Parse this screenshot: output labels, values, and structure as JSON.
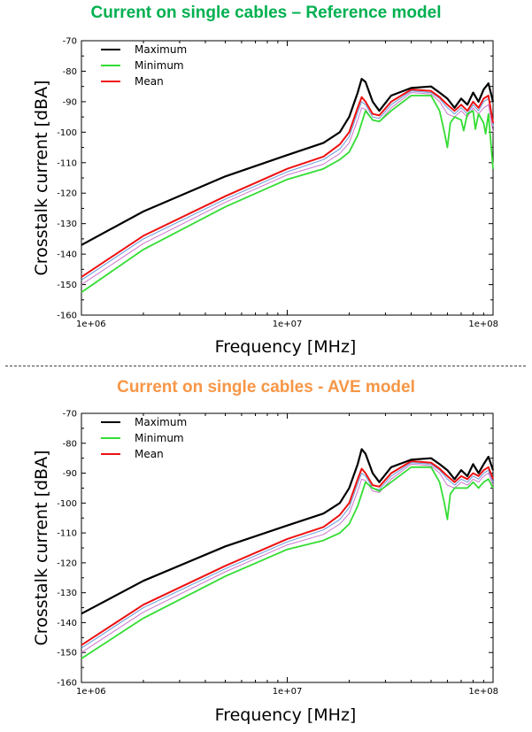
{
  "chart_data": [
    {
      "type": "line",
      "title": "Current on single cables – Reference model",
      "title_color": "#00b050",
      "xlabel": "Frequency [MHz]",
      "ylabel": "Crosstalk current [dBA]",
      "x_scale": "log",
      "xlim": [
        1000000,
        100000000
      ],
      "ylim": [
        -160,
        -70
      ],
      "x_ticks": [
        "1e+06",
        "1e+07",
        "1e+08"
      ],
      "y_ticks": [
        "-70",
        "-80",
        "-90",
        "-100",
        "-110",
        "-120",
        "-130",
        "-140",
        "-150",
        "-160"
      ],
      "legend_position": "top-left",
      "series": [
        {
          "name": "Maximum",
          "color": "#000000",
          "width": 2.2,
          "x": [
            1000000,
            2000000,
            5000000,
            10000000,
            15000000,
            18000000,
            20000000,
            22000000,
            23000000,
            24000000,
            26000000,
            28000000,
            32000000,
            40000000,
            50000000,
            55000000,
            60000000,
            65000000,
            70000000,
            75000000,
            80000000,
            85000000,
            90000000,
            95000000,
            100000000
          ],
          "y": [
            -137,
            -126,
            -114.5,
            -107.5,
            -103.5,
            -100,
            -95,
            -87,
            -82.5,
            -83.5,
            -90,
            -93,
            -88,
            -85.5,
            -85,
            -87,
            -89,
            -92,
            -89,
            -91,
            -87,
            -90,
            -86,
            -84,
            -90
          ]
        },
        {
          "name": "Minimum",
          "color": "#33dd33",
          "width": 1.8,
          "x": [
            1000000,
            2000000,
            5000000,
            10000000,
            15000000,
            18000000,
            20000000,
            22000000,
            24000000,
            26000000,
            28000000,
            32000000,
            40000000,
            50000000,
            55000000,
            58000000,
            60000000,
            62000000,
            65000000,
            70000000,
            72000000,
            75000000,
            80000000,
            82000000,
            85000000,
            90000000,
            92000000,
            95000000,
            100000000
          ],
          "y": [
            -152.5,
            -138.5,
            -124.5,
            -115.5,
            -112,
            -109,
            -106.5,
            -101,
            -93,
            -96,
            -96.5,
            -93,
            -88,
            -88,
            -93,
            -100,
            -105,
            -97,
            -95,
            -96,
            -99.5,
            -94,
            -93,
            -99,
            -94,
            -97,
            -100.5,
            -94,
            -112
          ]
        },
        {
          "name": "Mean",
          "color": "#ee1111",
          "width": 2.0,
          "x": [
            1000000,
            2000000,
            5000000,
            10000000,
            15000000,
            18000000,
            20000000,
            22000000,
            23000000,
            24000000,
            26000000,
            28000000,
            32000000,
            40000000,
            50000000,
            55000000,
            60000000,
            65000000,
            70000000,
            75000000,
            80000000,
            85000000,
            90000000,
            95000000,
            100000000
          ],
          "y": [
            -147.5,
            -134,
            -121,
            -112,
            -108,
            -104,
            -100,
            -92,
            -88.5,
            -90,
            -94,
            -94.5,
            -90,
            -86,
            -86.5,
            -88.5,
            -91,
            -93,
            -91,
            -93,
            -90,
            -92,
            -89,
            -88,
            -97
          ]
        },
        {
          "name": "",
          "color": "#6699dd",
          "width": 1.0,
          "x": [
            1000000,
            2000000,
            5000000,
            10000000,
            15000000,
            18000000,
            20000000,
            22000000,
            23000000,
            24000000,
            26000000,
            28000000,
            32000000,
            40000000,
            50000000,
            55000000,
            60000000,
            65000000,
            70000000,
            75000000,
            80000000,
            85000000,
            90000000,
            95000000,
            100000000
          ],
          "y": [
            -148.5,
            -135,
            -122,
            -113,
            -109,
            -105.5,
            -101.5,
            -93.5,
            -90,
            -91,
            -95,
            -95.5,
            -91,
            -86.5,
            -87,
            -89,
            -92,
            -94,
            -92,
            -94,
            -91,
            -93,
            -90,
            -89,
            -98
          ]
        },
        {
          "name": "",
          "color": "#cc77cc",
          "width": 1.0,
          "x": [
            1000000,
            2000000,
            5000000,
            10000000,
            15000000,
            18000000,
            20000000,
            22000000,
            23000000,
            24000000,
            26000000,
            28000000,
            32000000,
            40000000,
            50000000,
            55000000,
            60000000,
            65000000,
            70000000,
            75000000,
            80000000,
            85000000,
            90000000,
            95000000,
            100000000
          ],
          "y": [
            -150,
            -136.5,
            -123,
            -114,
            -110.5,
            -107,
            -103.5,
            -96,
            -92,
            -92.5,
            -96,
            -96.5,
            -92,
            -87,
            -87.5,
            -90,
            -94,
            -95,
            -93,
            -95,
            -92,
            -94,
            -92,
            -91,
            -100
          ]
        }
      ]
    },
    {
      "type": "line",
      "title": "Current on single cables - AVE model",
      "title_color": "#f79646",
      "xlabel": "Frequency [MHz]",
      "ylabel": "Crosstalk current [dBA]",
      "x_scale": "log",
      "xlim": [
        1000000,
        100000000
      ],
      "ylim": [
        -160,
        -70
      ],
      "x_ticks": [
        "1e+06",
        "1e+07",
        "1e+08"
      ],
      "y_ticks": [
        "-70",
        "-80",
        "-90",
        "-100",
        "-110",
        "-120",
        "-130",
        "-140",
        "-150",
        "-160"
      ],
      "legend_position": "top-left",
      "series": [
        {
          "name": "Maximum",
          "color": "#000000",
          "width": 2.2,
          "x": [
            1000000,
            2000000,
            5000000,
            10000000,
            15000000,
            18000000,
            20000000,
            22000000,
            23000000,
            24000000,
            26000000,
            28000000,
            32000000,
            40000000,
            50000000,
            55000000,
            60000000,
            65000000,
            70000000,
            75000000,
            80000000,
            85000000,
            90000000,
            95000000,
            100000000
          ],
          "y": [
            -137,
            -126,
            -114.5,
            -107.5,
            -103.5,
            -100,
            -95,
            -87,
            -82,
            -83.5,
            -90,
            -93,
            -88,
            -85.5,
            -85,
            -87,
            -89,
            -92,
            -89,
            -91,
            -87,
            -90,
            -87,
            -84.5,
            -89
          ]
        },
        {
          "name": "Minimum",
          "color": "#33dd33",
          "width": 1.8,
          "x": [
            1000000,
            2000000,
            5000000,
            10000000,
            15000000,
            18000000,
            20000000,
            22000000,
            24000000,
            26000000,
            28000000,
            32000000,
            40000000,
            50000000,
            55000000,
            58000000,
            60000000,
            62000000,
            65000000,
            70000000,
            75000000,
            80000000,
            85000000,
            90000000,
            95000000,
            100000000
          ],
          "y": [
            -152,
            -138.5,
            -124.5,
            -115.5,
            -112.5,
            -110,
            -107,
            -101,
            -93,
            -95,
            -96,
            -93,
            -88,
            -88,
            -93,
            -100,
            -105.5,
            -97,
            -95,
            -95,
            -95,
            -93,
            -95,
            -93,
            -92,
            -95
          ]
        },
        {
          "name": "Mean",
          "color": "#ee1111",
          "width": 2.0,
          "x": [
            1000000,
            2000000,
            5000000,
            10000000,
            15000000,
            18000000,
            20000000,
            22000000,
            23000000,
            24000000,
            26000000,
            28000000,
            32000000,
            40000000,
            50000000,
            55000000,
            60000000,
            65000000,
            70000000,
            75000000,
            80000000,
            85000000,
            90000000,
            95000000,
            100000000
          ],
          "y": [
            -147.5,
            -134,
            -121,
            -112,
            -108,
            -104,
            -100,
            -92,
            -88.5,
            -90,
            -94,
            -94.5,
            -90,
            -86,
            -86.5,
            -88.5,
            -91,
            -93,
            -91,
            -92,
            -90,
            -91,
            -89,
            -88,
            -92
          ]
        },
        {
          "name": "",
          "color": "#6699dd",
          "width": 1.0,
          "x": [
            1000000,
            2000000,
            5000000,
            10000000,
            15000000,
            18000000,
            20000000,
            22000000,
            23000000,
            24000000,
            26000000,
            28000000,
            32000000,
            40000000,
            50000000,
            55000000,
            60000000,
            65000000,
            70000000,
            75000000,
            80000000,
            85000000,
            90000000,
            95000000,
            100000000
          ],
          "y": [
            -148.5,
            -135,
            -122,
            -113,
            -109,
            -105.5,
            -101.5,
            -93.5,
            -90,
            -91,
            -95,
            -95.5,
            -91,
            -86.5,
            -87,
            -89,
            -92,
            -94,
            -92,
            -93,
            -91,
            -92,
            -90,
            -89,
            -93
          ]
        },
        {
          "name": "",
          "color": "#cc77cc",
          "width": 1.0,
          "x": [
            1000000,
            2000000,
            5000000,
            10000000,
            15000000,
            18000000,
            20000000,
            22000000,
            23000000,
            24000000,
            26000000,
            28000000,
            32000000,
            40000000,
            50000000,
            55000000,
            60000000,
            65000000,
            70000000,
            75000000,
            80000000,
            85000000,
            90000000,
            95000000,
            100000000
          ],
          "y": [
            -150,
            -136.5,
            -123,
            -114,
            -110.5,
            -107,
            -103.5,
            -96,
            -92,
            -92.5,
            -96,
            -96.5,
            -92,
            -87,
            -87.5,
            -90,
            -94,
            -95,
            -93,
            -94,
            -92,
            -93,
            -91,
            -90,
            -94
          ]
        }
      ]
    }
  ]
}
